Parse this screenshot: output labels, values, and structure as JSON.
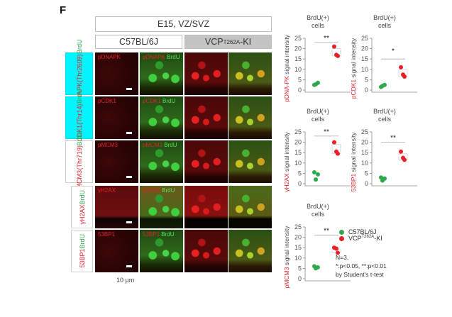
{
  "figure": {
    "panel_letter": "F",
    "header": {
      "condition": "E15, VZ/SVZ",
      "groups": [
        {
          "label": "C57BL/6J"
        },
        {
          "label_main": "VCP",
          "label_sup": "T262A",
          "label_tail": "-KI"
        }
      ]
    },
    "rows": [
      {
        "marker": "pDNAPK",
        "site": "(Thr2609)",
        "co": "BrdU",
        "highlight": true,
        "panel_label": "pDNAPK",
        "merge_label_red": "pDNAPK",
        "merge_label_green": "BrdU"
      },
      {
        "marker": "pCDK1",
        "site": "(Thr14)",
        "co": "BrdU",
        "highlight": true,
        "panel_label": "pCDK1",
        "merge_label_red": "pCDK1",
        "merge_label_green": "BrdU"
      },
      {
        "marker": "pMCM3",
        "site": "(Thr719)",
        "co": "BrdU",
        "highlight": false,
        "panel_label": "pMCM3",
        "merge_label_red": "pMCM3",
        "merge_label_green": "BrdU"
      },
      {
        "marker": "γH2AX",
        "site": "",
        "co": "BrdU",
        "highlight": false,
        "panel_label": "γH2AX",
        "merge_label_red": "γH2AX",
        "merge_label_green": "BrdU"
      },
      {
        "marker": "53BP1",
        "site": "",
        "co": "BrdU",
        "highlight": false,
        "panel_label": "53BP1",
        "merge_label_red": "53BP1",
        "merge_label_green": "BrdU"
      }
    ],
    "scale_bar": "10 μm",
    "legend": {
      "items": [
        {
          "label": "C57BL/6J",
          "color": "#2ea84a"
        },
        {
          "label_main": "VCP",
          "label_sup": "T262A",
          "label_tail": "-KI",
          "color": "#e8202a"
        }
      ]
    },
    "notes": [
      "N=3,",
      "*:p<0.05, **:p<0.01",
      "by Student's t-test"
    ]
  },
  "chart_data": [
    {
      "type": "scatter",
      "title": "BrdU(+) cells",
      "ylabel_marker": "pDNA-PK",
      "ylabel": "signal intensity",
      "ylim": [
        0,
        25
      ],
      "yticks": [
        0,
        5,
        10,
        15,
        20,
        25
      ],
      "significance": "**",
      "series": [
        {
          "name": "C57BL/6J",
          "color": "#2ea84a",
          "values": [
            2.5,
            3.5,
            2.8
          ]
        },
        {
          "name": "VCP T262A-KI",
          "color": "#e8202a",
          "values": [
            21.0,
            17.0,
            16.5
          ]
        }
      ]
    },
    {
      "type": "scatter",
      "title": "BrdU(+) cells",
      "ylabel_marker": "pCDK1",
      "ylabel": "signal intensity",
      "ylim": [
        0,
        25
      ],
      "yticks": [
        0,
        5,
        10,
        15,
        20,
        25
      ],
      "significance": "*",
      "series": [
        {
          "name": "C57BL/6J",
          "color": "#2ea84a",
          "values": [
            1.5,
            2.5,
            2.0
          ]
        },
        {
          "name": "VCP T262A-KI",
          "color": "#e8202a",
          "values": [
            11.0,
            7.5,
            6.5
          ]
        }
      ]
    },
    {
      "type": "scatter",
      "title": "BrdU(+) cells",
      "ylabel_marker": "γH2AX",
      "ylabel": "signal intensity",
      "ylim": [
        0,
        25
      ],
      "yticks": [
        0,
        5,
        10,
        15,
        20,
        25
      ],
      "significance": "**",
      "series": [
        {
          "name": "C57BL/6J",
          "color": "#2ea84a",
          "values": [
            5.5,
            4.5,
            2.0
          ]
        },
        {
          "name": "VCP T262A-KI",
          "color": "#e8202a",
          "values": [
            20.0,
            15.5,
            14.5
          ]
        }
      ]
    },
    {
      "type": "scatter",
      "title": "BrdU(+) cells",
      "ylabel_marker": "53BP1",
      "ylabel": "signal intensity",
      "ylim": [
        0,
        25
      ],
      "yticks": [
        0,
        5,
        10,
        15,
        20,
        25
      ],
      "significance": "**",
      "series": [
        {
          "name": "C57BL/6J",
          "color": "#2ea84a",
          "values": [
            3.0,
            2.5,
            1.5
          ]
        },
        {
          "name": "VCP T262A-KI",
          "color": "#e8202a",
          "values": [
            15.5,
            12.5,
            11.5
          ]
        }
      ]
    },
    {
      "type": "scatter",
      "title": "BrdU(+) cells",
      "ylabel_marker": "pMCM3",
      "ylabel": "signal intensity",
      "ylim": [
        0,
        25
      ],
      "yticks": [
        0,
        5,
        10,
        15,
        20,
        25
      ],
      "significance": "**",
      "series": [
        {
          "name": "C57BL/6J",
          "color": "#2ea84a",
          "values": [
            6.0,
            5.5,
            5.0
          ]
        },
        {
          "name": "VCP T262A-KI",
          "color": "#e8202a",
          "values": [
            15.0,
            14.5,
            12.5
          ]
        }
      ]
    }
  ]
}
